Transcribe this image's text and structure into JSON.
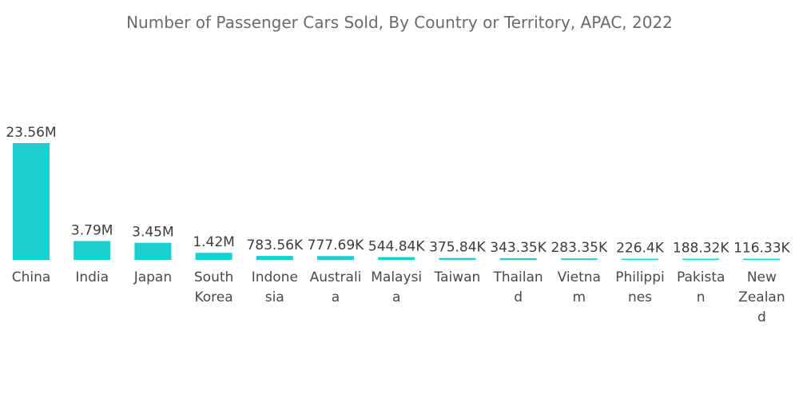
{
  "chart_data": {
    "type": "bar",
    "title": "Number of Passenger Cars Sold, By Country or Territory, APAC, 2022",
    "xlabel": "",
    "ylabel": "",
    "categories": [
      "China",
      "India",
      "Japan",
      "South Korea",
      "Indonesia",
      "Australia",
      "Malaysia",
      "Taiwan",
      "Thailand",
      "Vietnam",
      "Philippines",
      "Pakistan",
      "New Zealand"
    ],
    "category_label_lines": [
      [
        "China"
      ],
      [
        "India"
      ],
      [
        "Japan"
      ],
      [
        "South",
        "Korea"
      ],
      [
        "Indone",
        "sia"
      ],
      [
        "Australi",
        "a"
      ],
      [
        "Malaysi",
        "a"
      ],
      [
        "Taiwan"
      ],
      [
        "Thailan",
        "d"
      ],
      [
        "Vietna",
        "m"
      ],
      [
        "Philippi",
        "nes"
      ],
      [
        "Pakista",
        "n"
      ],
      [
        "New",
        "Zealan",
        "d"
      ]
    ],
    "values": [
      23560000,
      3790000,
      3450000,
      1420000,
      783560,
      777690,
      544840,
      375840,
      343350,
      283350,
      226400,
      188320,
      116330
    ],
    "data_labels": [
      "23.56M",
      "3.79M",
      "3.45M",
      "1.42M",
      "783.56K",
      "777.69K",
      "544.84K",
      "375.84K",
      "343.35K",
      "283.35K",
      "226.4K",
      "188.32K",
      "116.33K"
    ],
    "ylim": [
      0,
      23560000
    ],
    "grid": false,
    "legend": "none",
    "bar_color": "#1ccfcf"
  }
}
